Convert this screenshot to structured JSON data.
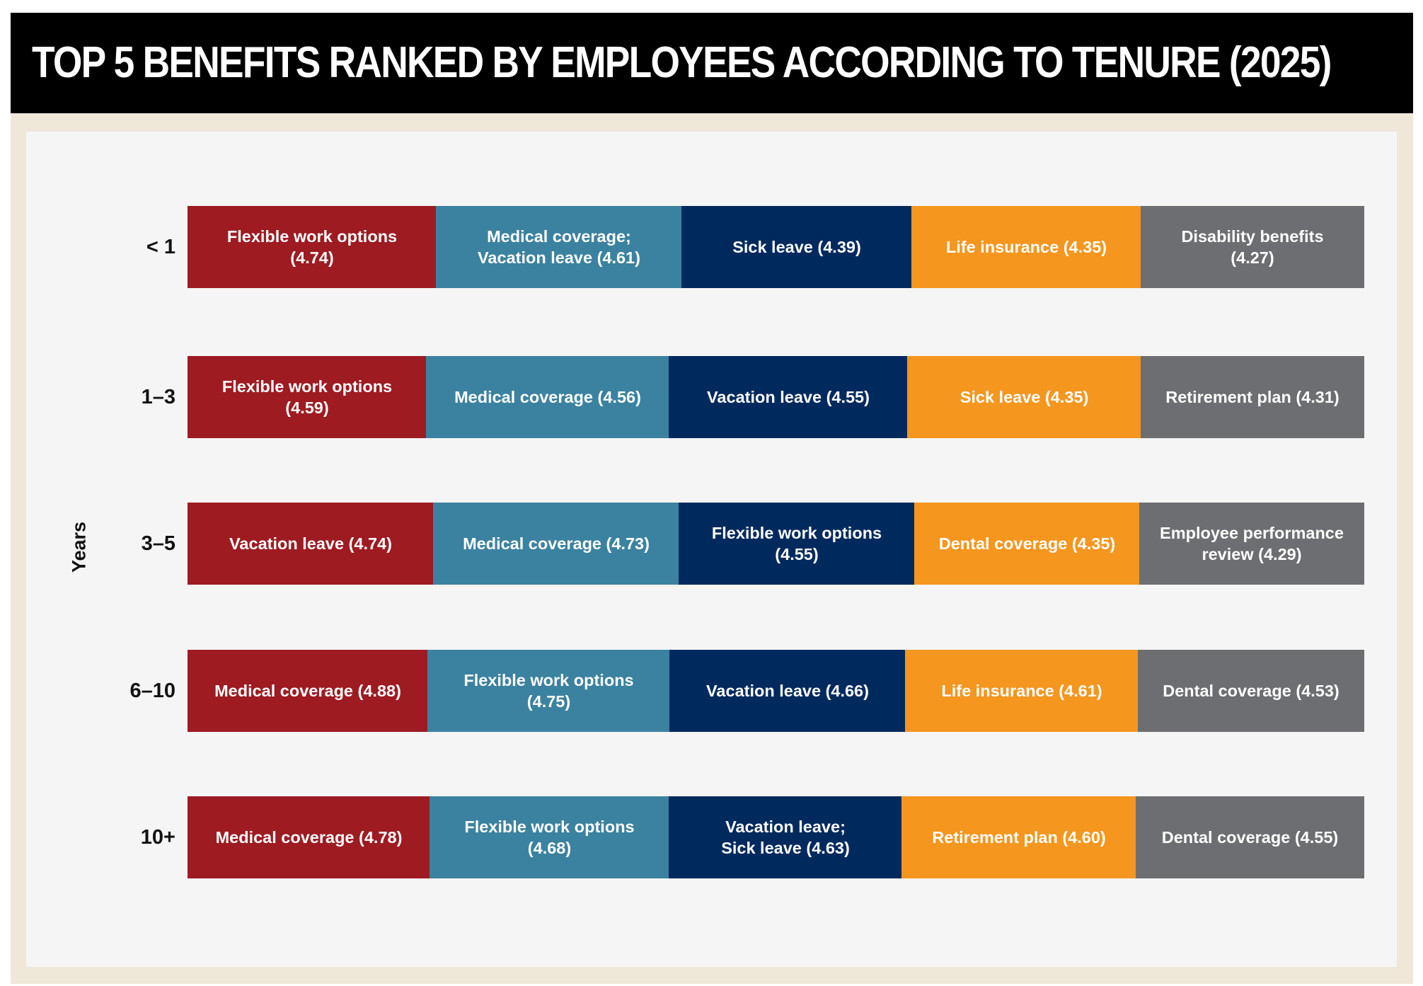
{
  "title": "TOP 5 BENEFITS RANKED BY EMPLOYEES ACCORDING TO TENURE (2025)",
  "colors": {
    "rank1": "#9e1b22",
    "rank2": "#3b82a0",
    "rank3": "#002a5e",
    "rank4": "#f5961e",
    "rank5": "#6d6e71",
    "background_frame": "#efe7d8",
    "title_bar": "#000000",
    "panel": "#f5f5f5"
  },
  "chart_data": {
    "type": "table",
    "ylabel": "Years",
    "categories": [
      "< 1",
      "1–3",
      "3–5",
      "6–10",
      "10+"
    ],
    "rows": [
      {
        "tenure": "< 1",
        "benefits": [
          {
            "rank": 1,
            "label": "Flexible work options\n(4.74)",
            "items": [
              "Flexible work options"
            ],
            "score": 4.74
          },
          {
            "rank": 2,
            "label": "Medical coverage;\nVacation leave (4.61)",
            "items": [
              "Medical coverage",
              "Vacation leave"
            ],
            "score": 4.61
          },
          {
            "rank": 3,
            "label": "Sick leave (4.39)",
            "items": [
              "Sick leave"
            ],
            "score": 4.39
          },
          {
            "rank": 4,
            "label": "Life insurance (4.35)",
            "items": [
              "Life insurance"
            ],
            "score": 4.35
          },
          {
            "rank": 5,
            "label": "Disability benefits\n(4.27)",
            "items": [
              "Disability benefits"
            ],
            "score": 4.27
          }
        ]
      },
      {
        "tenure": "1–3",
        "benefits": [
          {
            "rank": 1,
            "label": "Flexible work options\n(4.59)",
            "items": [
              "Flexible work options"
            ],
            "score": 4.59
          },
          {
            "rank": 2,
            "label": "Medical coverage (4.56)",
            "items": [
              "Medical coverage"
            ],
            "score": 4.56
          },
          {
            "rank": 3,
            "label": "Vacation leave (4.55)",
            "items": [
              "Vacation leave"
            ],
            "score": 4.55
          },
          {
            "rank": 4,
            "label": "Sick leave (4.35)",
            "items": [
              "Sick leave"
            ],
            "score": 4.35
          },
          {
            "rank": 5,
            "label": "Retirement plan (4.31)",
            "items": [
              "Retirement plan"
            ],
            "score": 4.31
          }
        ]
      },
      {
        "tenure": "3–5",
        "benefits": [
          {
            "rank": 1,
            "label": "Vacation leave (4.74)",
            "items": [
              "Vacation leave"
            ],
            "score": 4.74
          },
          {
            "rank": 2,
            "label": "Medical coverage (4.73)",
            "items": [
              "Medical coverage"
            ],
            "score": 4.73
          },
          {
            "rank": 3,
            "label": "Flexible work options\n(4.55)",
            "items": [
              "Flexible work options"
            ],
            "score": 4.55
          },
          {
            "rank": 4,
            "label": "Dental coverage (4.35)",
            "items": [
              "Dental coverage"
            ],
            "score": 4.35
          },
          {
            "rank": 5,
            "label": "Employee performance\nreview (4.29)",
            "items": [
              "Employee performance review"
            ],
            "score": 4.29
          }
        ]
      },
      {
        "tenure": "6–10",
        "benefits": [
          {
            "rank": 1,
            "label": "Medical coverage (4.88)",
            "items": [
              "Medical coverage"
            ],
            "score": 4.88
          },
          {
            "rank": 2,
            "label": "Flexible work options\n(4.75)",
            "items": [
              "Flexible work options"
            ],
            "score": 4.75
          },
          {
            "rank": 3,
            "label": "Vacation leave (4.66)",
            "items": [
              "Vacation leave"
            ],
            "score": 4.66
          },
          {
            "rank": 4,
            "label": "Life insurance (4.61)",
            "items": [
              "Life insurance"
            ],
            "score": 4.61
          },
          {
            "rank": 5,
            "label": "Dental coverage (4.53)",
            "items": [
              "Dental coverage"
            ],
            "score": 4.53
          }
        ]
      },
      {
        "tenure": "10+",
        "benefits": [
          {
            "rank": 1,
            "label": "Medical coverage (4.78)",
            "items": [
              "Medical coverage"
            ],
            "score": 4.78
          },
          {
            "rank": 2,
            "label": "Flexible work options\n(4.68)",
            "items": [
              "Flexible work options"
            ],
            "score": 4.68
          },
          {
            "rank": 3,
            "label": "Vacation leave;\nSick leave (4.63)",
            "items": [
              "Vacation leave",
              "Sick leave"
            ],
            "score": 4.63
          },
          {
            "rank": 4,
            "label": "Retirement plan (4.60)",
            "items": [
              "Retirement plan"
            ],
            "score": 4.6
          },
          {
            "rank": 5,
            "label": "Dental coverage (4.55)",
            "items": [
              "Dental coverage"
            ],
            "score": 4.55
          }
        ]
      }
    ]
  }
}
